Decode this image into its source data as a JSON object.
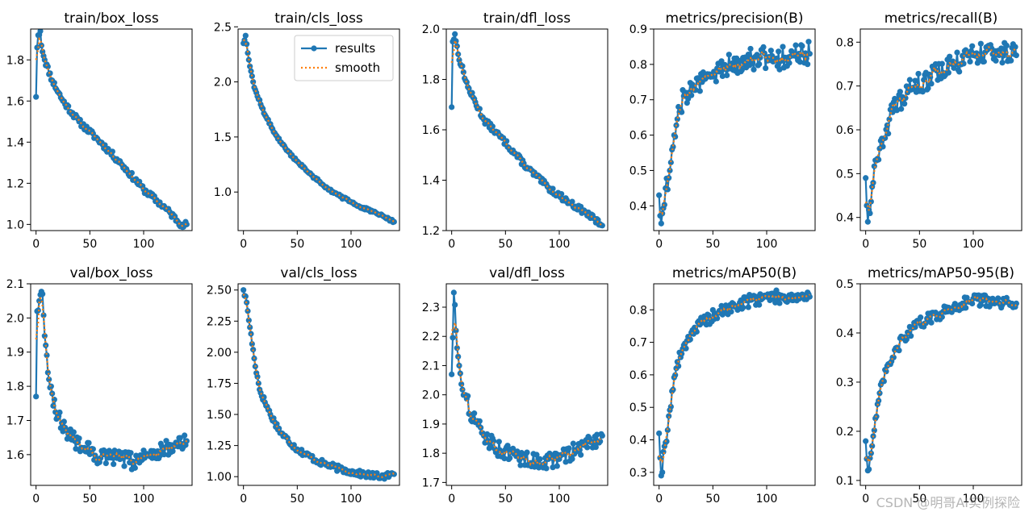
{
  "figure": {
    "legend": {
      "results_label": "results",
      "smooth_label": "smooth",
      "placement": "upper-right of train/cls_loss"
    },
    "colors": {
      "results": "#1f77b4",
      "smooth": "#ff7f0e",
      "axis": "#000000"
    },
    "watermark": "CSDN @明哥AI实例探险"
  },
  "chart_data": [
    {
      "type": "line",
      "title": "train/box_loss",
      "xlim": [
        -5,
        145
      ],
      "ylim": [
        0.97,
        1.95
      ],
      "xticks": [
        0,
        50,
        100
      ],
      "yticks": [
        1.0,
        1.2,
        1.4,
        1.6,
        1.8
      ],
      "yfmt": 1,
      "series": [
        {
          "name": "results",
          "anchors": [
            [
              0,
              1.62
            ],
            [
              1,
              1.86
            ],
            [
              2,
              1.92
            ],
            [
              4,
              1.94
            ],
            [
              5,
              1.87
            ],
            [
              8,
              1.8
            ],
            [
              15,
              1.7
            ],
            [
              25,
              1.6
            ],
            [
              40,
              1.5
            ],
            [
              60,
              1.4
            ],
            [
              80,
              1.29
            ],
            [
              100,
              1.17
            ],
            [
              120,
              1.08
            ],
            [
              135,
              1.0
            ],
            [
              140,
              1.0
            ]
          ],
          "noise": 0.015,
          "seed": 11
        },
        {
          "name": "smooth",
          "from": "results",
          "window": 5
        }
      ]
    },
    {
      "type": "line",
      "title": "train/cls_loss",
      "xlim": [
        -5,
        145
      ],
      "ylim": [
        0.65,
        2.48
      ],
      "xticks": [
        0,
        50,
        100
      ],
      "yticks": [
        1.0,
        1.5,
        2.0,
        2.5
      ],
      "yfmt": 1,
      "series": [
        {
          "name": "results",
          "anchors": [
            [
              0,
              2.35
            ],
            [
              2,
              2.42
            ],
            [
              5,
              2.2
            ],
            [
              10,
              1.95
            ],
            [
              20,
              1.7
            ],
            [
              30,
              1.52
            ],
            [
              40,
              1.38
            ],
            [
              50,
              1.28
            ],
            [
              60,
              1.18
            ],
            [
              70,
              1.1
            ],
            [
              80,
              1.02
            ],
            [
              90,
              0.96
            ],
            [
              100,
              0.91
            ],
            [
              110,
              0.86
            ],
            [
              120,
              0.82
            ],
            [
              130,
              0.78
            ],
            [
              140,
              0.73
            ]
          ],
          "noise": 0.012,
          "seed": 12
        },
        {
          "name": "smooth",
          "from": "results",
          "window": 5
        }
      ]
    },
    {
      "type": "line",
      "title": "train/dfl_loss",
      "xlim": [
        -5,
        145
      ],
      "ylim": [
        1.2,
        2.0
      ],
      "xticks": [
        0,
        50,
        100
      ],
      "yticks": [
        1.2,
        1.4,
        1.6,
        1.8,
        2.0
      ],
      "yfmt": 1,
      "series": [
        {
          "name": "results",
          "anchors": [
            [
              0,
              1.69
            ],
            [
              1,
              1.95
            ],
            [
              3,
              1.98
            ],
            [
              6,
              1.9
            ],
            [
              15,
              1.77
            ],
            [
              30,
              1.64
            ],
            [
              50,
              1.55
            ],
            [
              70,
              1.45
            ],
            [
              90,
              1.37
            ],
            [
              110,
              1.31
            ],
            [
              125,
              1.27
            ],
            [
              140,
              1.22
            ]
          ],
          "noise": 0.012,
          "seed": 13
        },
        {
          "name": "smooth",
          "from": "results",
          "window": 5
        }
      ]
    },
    {
      "type": "line",
      "title": "metrics/precision(B)",
      "xlim": [
        -5,
        145
      ],
      "ylim": [
        0.33,
        0.9
      ],
      "xticks": [
        0,
        50,
        100
      ],
      "yticks": [
        0.4,
        0.5,
        0.6,
        0.7,
        0.8,
        0.9
      ],
      "yfmt": 1,
      "series": [
        {
          "name": "results",
          "anchors": [
            [
              0,
              0.43
            ],
            [
              2,
              0.35
            ],
            [
              6,
              0.45
            ],
            [
              10,
              0.5
            ],
            [
              14,
              0.6
            ],
            [
              18,
              0.68
            ],
            [
              25,
              0.72
            ],
            [
              40,
              0.75
            ],
            [
              60,
              0.79
            ],
            [
              80,
              0.82
            ],
            [
              100,
              0.82
            ],
            [
              120,
              0.82
            ],
            [
              140,
              0.83
            ]
          ],
          "noise": 0.035,
          "seed": 14
        },
        {
          "name": "smooth",
          "from": "results",
          "window": 5
        }
      ]
    },
    {
      "type": "line",
      "title": "metrics/recall(B)",
      "xlim": [
        -5,
        145
      ],
      "ylim": [
        0.37,
        0.83
      ],
      "xticks": [
        0,
        50,
        100
      ],
      "yticks": [
        0.4,
        0.5,
        0.6,
        0.7,
        0.8
      ],
      "yfmt": 1,
      "series": [
        {
          "name": "results",
          "anchors": [
            [
              0,
              0.49
            ],
            [
              2,
              0.39
            ],
            [
              6,
              0.47
            ],
            [
              10,
              0.53
            ],
            [
              15,
              0.58
            ],
            [
              25,
              0.64
            ],
            [
              40,
              0.69
            ],
            [
              60,
              0.72
            ],
            [
              80,
              0.75
            ],
            [
              100,
              0.77
            ],
            [
              120,
              0.78
            ],
            [
              140,
              0.77
            ]
          ],
          "noise": 0.025,
          "seed": 15
        },
        {
          "name": "smooth",
          "from": "results",
          "window": 5
        }
      ]
    },
    {
      "type": "line",
      "title": "val/box_loss",
      "xlim": [
        -5,
        145
      ],
      "ylim": [
        1.51,
        2.1
      ],
      "xticks": [
        0,
        50,
        100
      ],
      "yticks": [
        1.6,
        1.7,
        1.8,
        1.9,
        2.0,
        2.1
      ],
      "yfmt": 1,
      "series": [
        {
          "name": "results",
          "anchors": [
            [
              0,
              1.77
            ],
            [
              1,
              2.02
            ],
            [
              3,
              2.05
            ],
            [
              6,
              2.07
            ],
            [
              9,
              1.92
            ],
            [
              12,
              1.82
            ],
            [
              20,
              1.71
            ],
            [
              30,
              1.66
            ],
            [
              45,
              1.62
            ],
            [
              60,
              1.59
            ],
            [
              75,
              1.59
            ],
            [
              90,
              1.58
            ],
            [
              105,
              1.6
            ],
            [
              120,
              1.62
            ],
            [
              140,
              1.64
            ]
          ],
          "noise": 0.025,
          "seed": 16
        },
        {
          "name": "smooth",
          "from": "results",
          "window": 5
        }
      ]
    },
    {
      "type": "line",
      "title": "val/cls_loss",
      "xlim": [
        -5,
        145
      ],
      "ylim": [
        0.93,
        2.55
      ],
      "xticks": [
        0,
        50,
        100
      ],
      "yticks": [
        1.0,
        1.25,
        1.5,
        1.75,
        2.0,
        2.25,
        2.5
      ],
      "yfmt": 2,
      "series": [
        {
          "name": "results",
          "anchors": [
            [
              0,
              2.5
            ],
            [
              3,
              2.4
            ],
            [
              6,
              2.2
            ],
            [
              10,
              1.95
            ],
            [
              15,
              1.7
            ],
            [
              25,
              1.5
            ],
            [
              35,
              1.35
            ],
            [
              50,
              1.22
            ],
            [
              70,
              1.12
            ],
            [
              90,
              1.06
            ],
            [
              110,
              1.02
            ],
            [
              130,
              1.0
            ],
            [
              140,
              1.02
            ]
          ],
          "noise": 0.025,
          "seed": 17
        },
        {
          "name": "smooth",
          "from": "results",
          "window": 5
        }
      ]
    },
    {
      "type": "line",
      "title": "val/dfl_loss",
      "xlim": [
        -5,
        145
      ],
      "ylim": [
        1.69,
        2.38
      ],
      "xticks": [
        0,
        50,
        100
      ],
      "yticks": [
        1.7,
        1.8,
        1.9,
        2.0,
        2.1,
        2.2,
        2.3
      ],
      "yfmt": 1,
      "series": [
        {
          "name": "results",
          "anchors": [
            [
              0,
              2.07
            ],
            [
              2,
              2.35
            ],
            [
              4,
              2.22
            ],
            [
              7,
              2.1
            ],
            [
              12,
              2.0
            ],
            [
              20,
              1.92
            ],
            [
              30,
              1.86
            ],
            [
              45,
              1.81
            ],
            [
              60,
              1.79
            ],
            [
              80,
              1.77
            ],
            [
              100,
              1.78
            ],
            [
              115,
              1.81
            ],
            [
              130,
              1.84
            ],
            [
              140,
              1.86
            ]
          ],
          "noise": 0.028,
          "seed": 18
        },
        {
          "name": "smooth",
          "from": "results",
          "window": 5
        }
      ]
    },
    {
      "type": "line",
      "title": "metrics/mAP50(B)",
      "xlim": [
        -5,
        145
      ],
      "ylim": [
        0.26,
        0.88
      ],
      "xticks": [
        0,
        50,
        100
      ],
      "yticks": [
        0.3,
        0.4,
        0.5,
        0.6,
        0.7,
        0.8
      ],
      "yfmt": 1,
      "series": [
        {
          "name": "results",
          "anchors": [
            [
              0,
              0.42
            ],
            [
              2,
              0.29
            ],
            [
              5,
              0.38
            ],
            [
              8,
              0.43
            ],
            [
              12,
              0.55
            ],
            [
              16,
              0.62
            ],
            [
              22,
              0.68
            ],
            [
              30,
              0.73
            ],
            [
              40,
              0.76
            ],
            [
              55,
              0.79
            ],
            [
              70,
              0.81
            ],
            [
              85,
              0.83
            ],
            [
              100,
              0.84
            ],
            [
              120,
              0.84
            ],
            [
              140,
              0.84
            ]
          ],
          "noise": 0.02,
          "seed": 19
        },
        {
          "name": "smooth",
          "from": "results",
          "window": 5
        }
      ]
    },
    {
      "type": "line",
      "title": "metrics/mAP50-95(B)",
      "xlim": [
        -5,
        145
      ],
      "ylim": [
        0.09,
        0.5
      ],
      "xticks": [
        0,
        50,
        100
      ],
      "yticks": [
        0.1,
        0.2,
        0.3,
        0.4,
        0.5
      ],
      "yfmt": 1,
      "series": [
        {
          "name": "results",
          "anchors": [
            [
              0,
              0.18
            ],
            [
              2,
              0.12
            ],
            [
              6,
              0.17
            ],
            [
              10,
              0.23
            ],
            [
              15,
              0.3
            ],
            [
              25,
              0.35
            ],
            [
              35,
              0.39
            ],
            [
              50,
              0.42
            ],
            [
              70,
              0.44
            ],
            [
              90,
              0.46
            ],
            [
              100,
              0.47
            ],
            [
              120,
              0.46
            ],
            [
              140,
              0.46
            ]
          ],
          "noise": 0.012,
          "seed": 20
        },
        {
          "name": "smooth",
          "from": "results",
          "window": 5
        }
      ]
    }
  ]
}
